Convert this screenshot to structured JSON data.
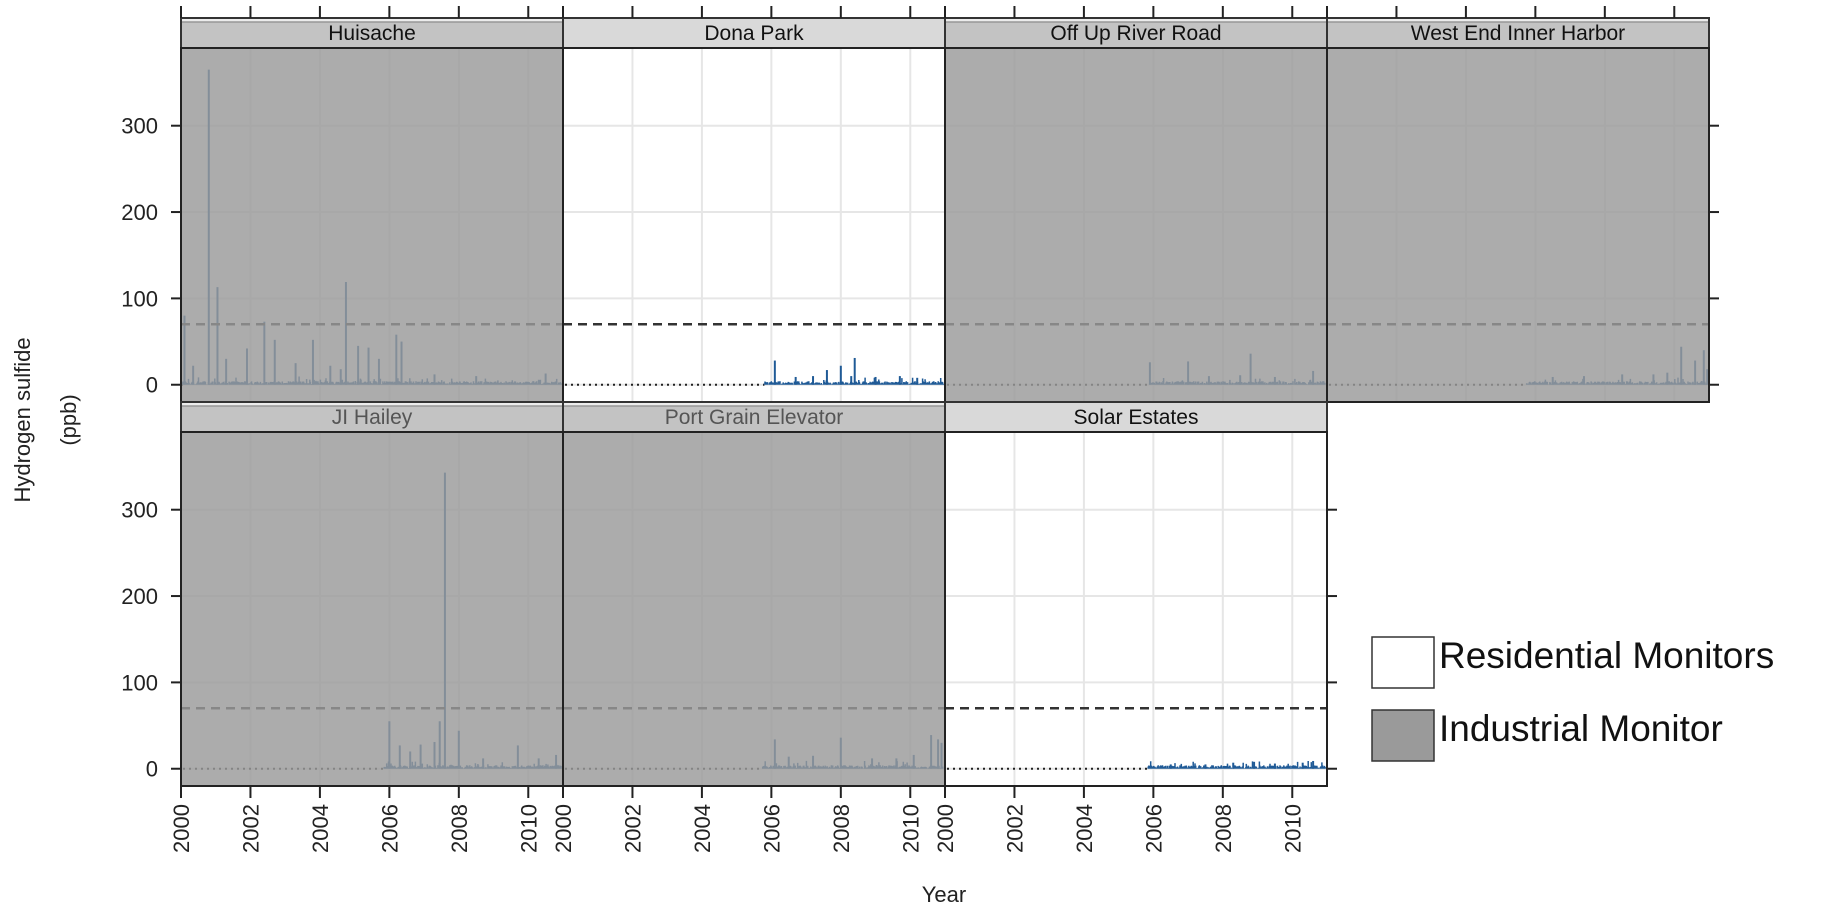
{
  "chart_data": {
    "type": "line",
    "xlabel": "Year",
    "ylabel_line1": "Hydrogen sulfide",
    "ylabel_line2": "(ppb)",
    "xlim": [
      2000,
      2011
    ],
    "ylim": [
      -20,
      390
    ],
    "x_ticks": [
      2000,
      2002,
      2004,
      2006,
      2008,
      2010
    ],
    "y_ticks": [
      0,
      100,
      200,
      300
    ],
    "threshold_ppb": 70,
    "grid": true,
    "legend_position": "right",
    "colors": {
      "series": "#1f5a96",
      "industrial_fill": "#9a9a9a",
      "residential_fill": "#ffffff",
      "strip_fill": "#d9d9d9",
      "grid": "#e6e6e6",
      "threshold": "#333333"
    },
    "legend": [
      {
        "label": "Residential Monitors",
        "kind": "residential"
      },
      {
        "label": "Industrial Monitor",
        "kind": "industrial"
      }
    ],
    "panels": [
      {
        "name": "Huisache",
        "row": 0,
        "col": 0,
        "kind": "industrial",
        "data_start": 2000.0,
        "peaks": [
          [
            2000.1,
            80
          ],
          [
            2000.35,
            22
          ],
          [
            2000.8,
            365
          ],
          [
            2001.05,
            113
          ],
          [
            2001.3,
            30
          ],
          [
            2001.9,
            42
          ],
          [
            2002.4,
            73
          ],
          [
            2002.7,
            52
          ],
          [
            2003.3,
            25
          ],
          [
            2003.8,
            52
          ],
          [
            2004.3,
            22
          ],
          [
            2004.6,
            18
          ],
          [
            2004.75,
            119
          ],
          [
            2005.1,
            45
          ],
          [
            2005.4,
            43
          ],
          [
            2005.7,
            30
          ],
          [
            2006.2,
            58
          ],
          [
            2006.35,
            50
          ],
          [
            2007.3,
            12
          ],
          [
            2008.5,
            10
          ],
          [
            2010.5,
            13
          ]
        ]
      },
      {
        "name": "Dona Park",
        "row": 0,
        "col": 1,
        "kind": "residential",
        "data_start": 2005.8,
        "peaks": [
          [
            2006.1,
            28
          ],
          [
            2006.7,
            9
          ],
          [
            2007.2,
            10
          ],
          [
            2007.6,
            17
          ],
          [
            2008.0,
            22
          ],
          [
            2008.3,
            10
          ],
          [
            2008.4,
            31
          ],
          [
            2009.0,
            9
          ],
          [
            2009.7,
            10
          ],
          [
            2010.2,
            8
          ]
        ]
      },
      {
        "name": "Off Up River Road",
        "row": 0,
        "col": 2,
        "kind": "industrial",
        "data_start": 2005.9,
        "peaks": [
          [
            2005.9,
            26
          ],
          [
            2007.0,
            27
          ],
          [
            2007.6,
            10
          ],
          [
            2008.5,
            11
          ],
          [
            2008.8,
            36
          ],
          [
            2009.5,
            9
          ],
          [
            2010.6,
            16
          ]
        ]
      },
      {
        "name": "West End Inner Harbor",
        "row": 0,
        "col": 3,
        "kind": "industrial",
        "data_start": 2005.75,
        "peaks": [
          [
            2006.5,
            9
          ],
          [
            2007.4,
            10
          ],
          [
            2008.5,
            12
          ],
          [
            2009.4,
            12
          ],
          [
            2009.8,
            14
          ],
          [
            2010.2,
            44
          ],
          [
            2010.6,
            28
          ],
          [
            2010.85,
            40
          ],
          [
            2010.95,
            18
          ]
        ]
      },
      {
        "name": "JI Hailey",
        "row": 1,
        "col": 0,
        "kind": "industrial",
        "data_start": 2005.85,
        "peaks": [
          [
            2006.0,
            55
          ],
          [
            2006.3,
            27
          ],
          [
            2006.6,
            20
          ],
          [
            2006.9,
            28
          ],
          [
            2007.3,
            31
          ],
          [
            2007.45,
            55
          ],
          [
            2007.6,
            343
          ],
          [
            2008.0,
            44
          ],
          [
            2008.7,
            12
          ],
          [
            2009.7,
            27
          ],
          [
            2010.3,
            12
          ],
          [
            2010.8,
            16
          ]
        ]
      },
      {
        "name": "Port Grain Elevator",
        "row": 1,
        "col": 1,
        "kind": "industrial",
        "data_start": 2005.75,
        "peaks": [
          [
            2006.1,
            34
          ],
          [
            2006.5,
            14
          ],
          [
            2007.2,
            15
          ],
          [
            2008.0,
            36
          ],
          [
            2008.9,
            12
          ],
          [
            2009.6,
            12
          ],
          [
            2010.1,
            16
          ],
          [
            2010.6,
            39
          ],
          [
            2010.8,
            34
          ],
          [
            2010.9,
            30
          ]
        ]
      },
      {
        "name": "Solar Estates",
        "row": 1,
        "col": 2,
        "kind": "residential",
        "data_start": 2005.85,
        "peaks": [
          [
            2006.5,
            5
          ],
          [
            2007.5,
            5
          ],
          [
            2008.3,
            7
          ],
          [
            2008.9,
            8
          ],
          [
            2009.5,
            6
          ],
          [
            2010.3,
            7
          ],
          [
            2010.6,
            9
          ]
        ]
      }
    ]
  }
}
